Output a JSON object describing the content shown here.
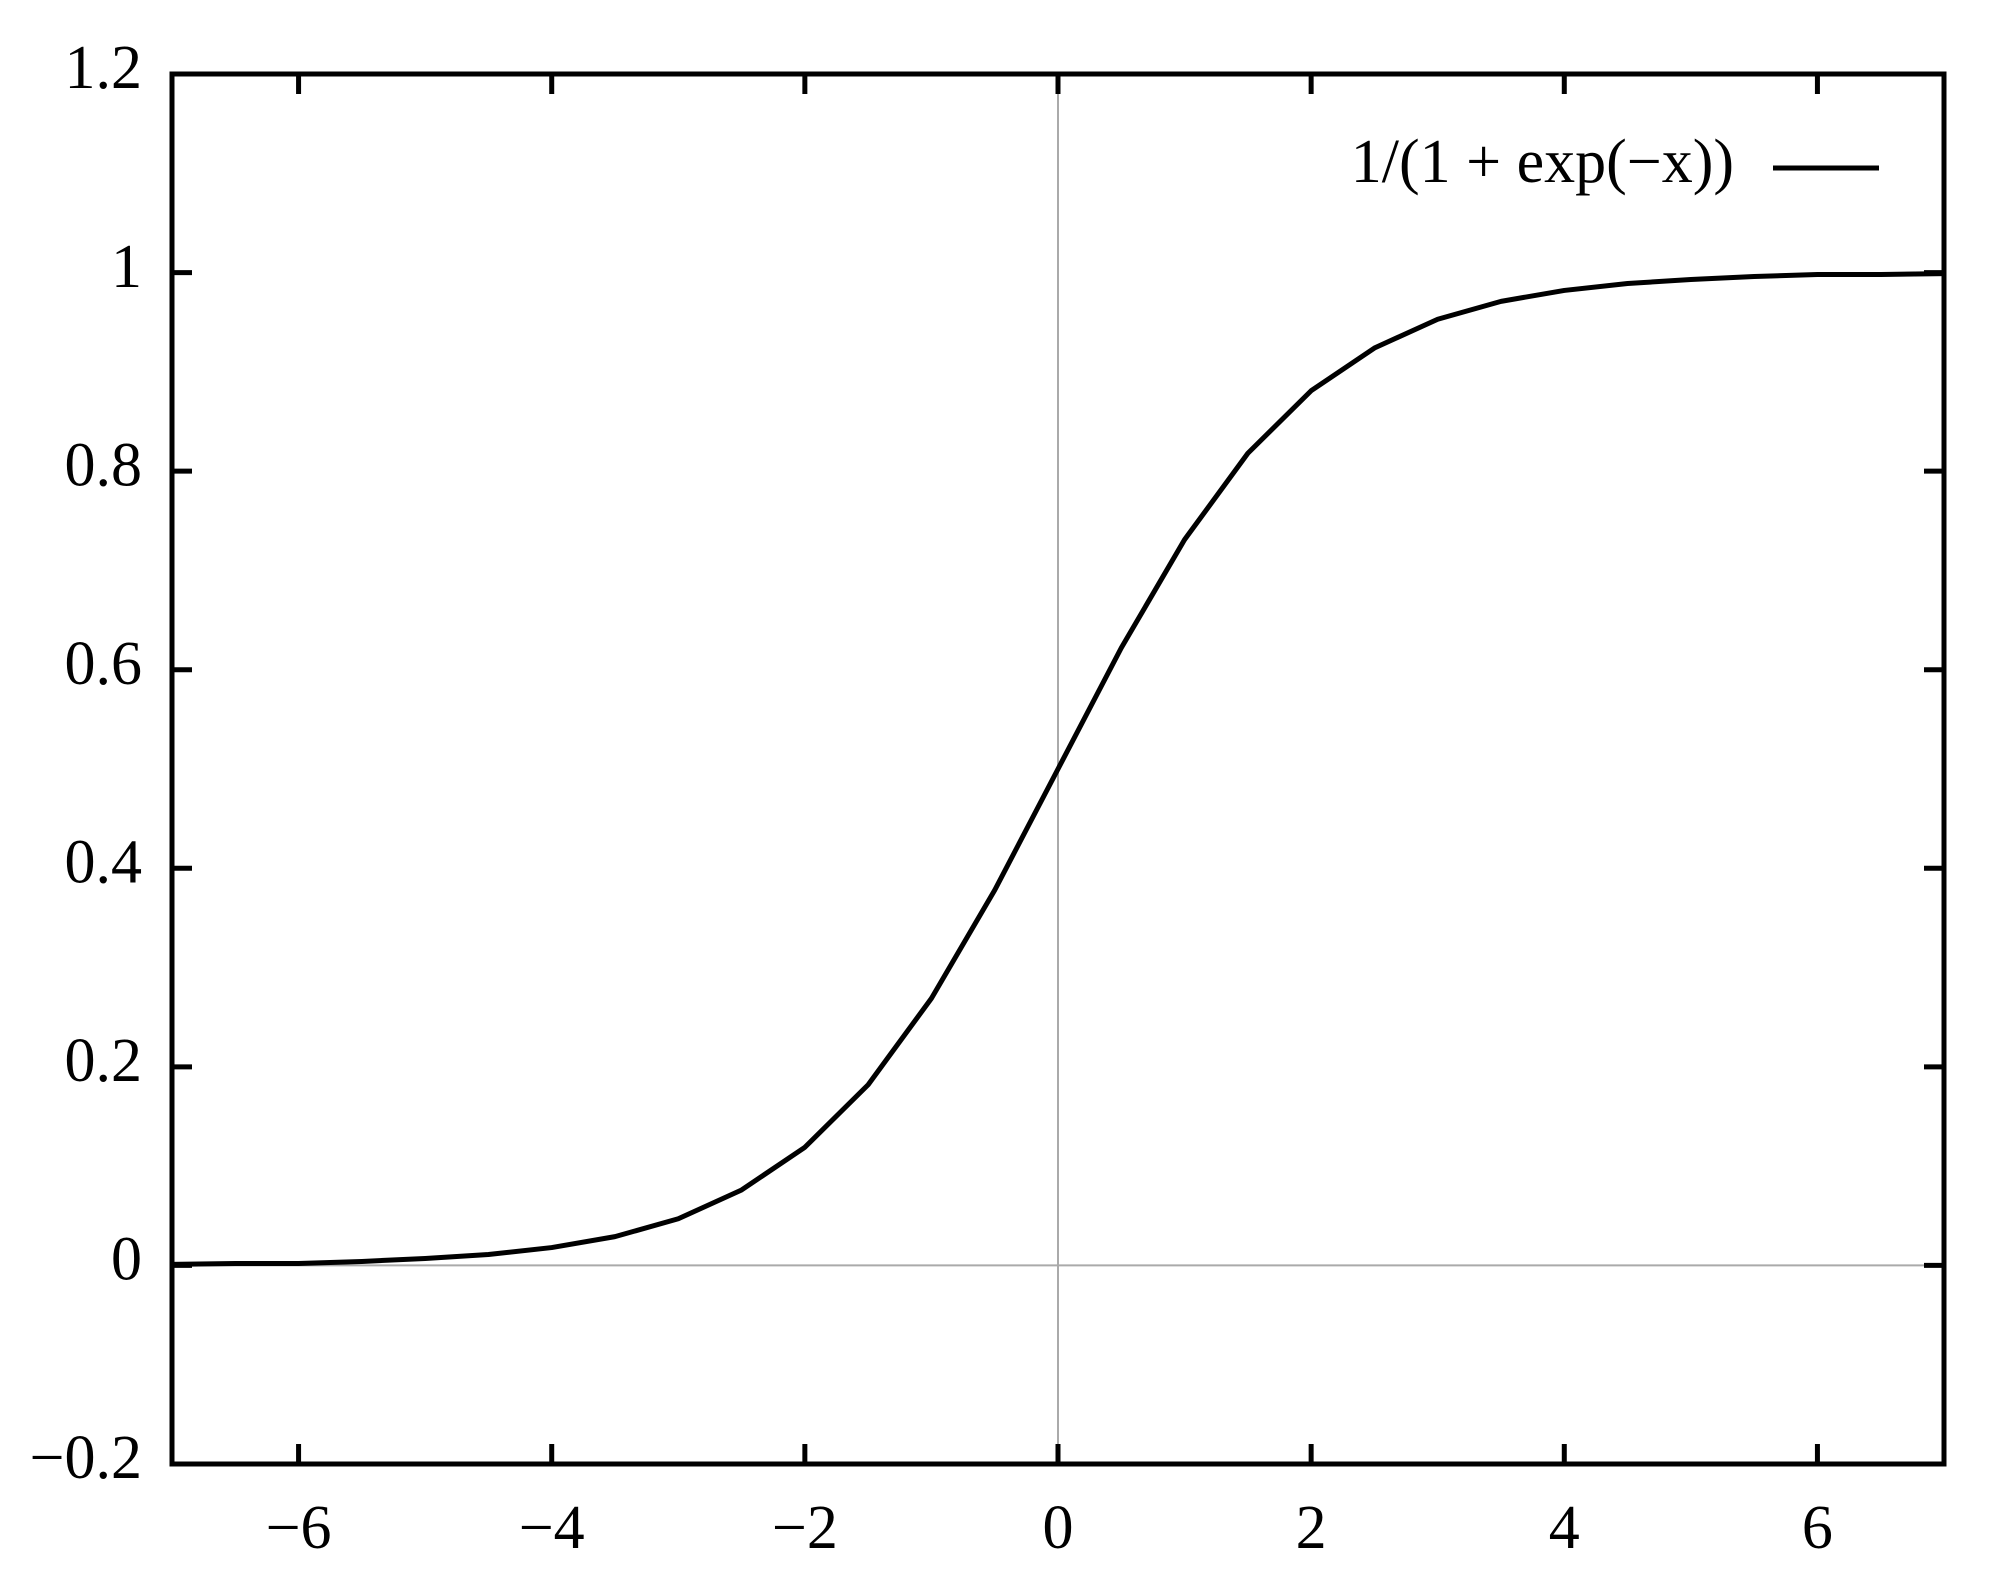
{
  "chart_data": {
    "type": "line",
    "x": [
      -7,
      -6.5,
      -6,
      -5.5,
      -5,
      -4.5,
      -4,
      -3.5,
      -3,
      -2.5,
      -2,
      -1.5,
      -1,
      -0.5,
      0,
      0.5,
      1,
      1.5,
      2,
      2.5,
      3,
      3.5,
      4,
      4.5,
      5,
      5.5,
      6,
      6.5,
      7
    ],
    "series": [
      {
        "name": "1/(1 + exp(−x))",
        "color": "#000000",
        "values": [
          0.001,
          0.002,
          0.002,
          0.004,
          0.007,
          0.011,
          0.018,
          0.029,
          0.047,
          0.076,
          0.119,
          0.182,
          0.269,
          0.378,
          0.5,
          0.622,
          0.731,
          0.818,
          0.881,
          0.924,
          0.953,
          0.971,
          0.982,
          0.989,
          0.993,
          0.996,
          0.998,
          0.998,
          0.999
        ]
      }
    ],
    "xlim": [
      -7,
      7
    ],
    "xticks": [
      {
        "value": -6,
        "label": "−6"
      },
      {
        "value": -4,
        "label": "−4"
      },
      {
        "value": -2,
        "label": "−2"
      },
      0,
      2,
      4,
      6
    ],
    "ylim": [
      -0.2,
      1.2
    ],
    "yticks": [
      {
        "value": -0.2,
        "label": "−0.2"
      },
      0,
      0.2,
      0.4,
      0.6,
      0.8,
      1,
      1.2
    ],
    "zero_axes": true,
    "legend": "top-right"
  }
}
